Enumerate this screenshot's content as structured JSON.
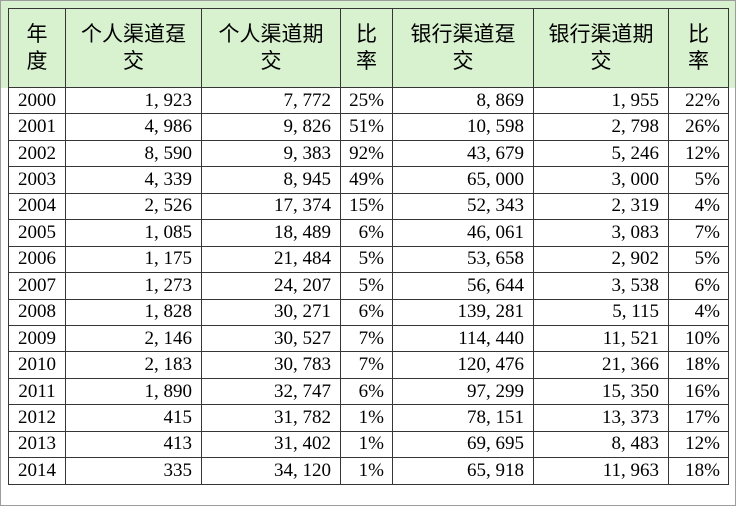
{
  "chart_data": {
    "type": "table",
    "title": "",
    "columns": [
      "年度",
      "个人渠道趸交",
      "个人渠道期交",
      "比率",
      "银行渠道趸交",
      "银行渠道期交",
      "比率"
    ],
    "rows": [
      [
        "2000",
        "1, 923",
        "7, 772",
        "25%",
        "8, 869",
        "1, 955",
        "22%"
      ],
      [
        "2001",
        "4, 986",
        "9, 826",
        "51%",
        "10, 598",
        "2, 798",
        "26%"
      ],
      [
        "2002",
        "8, 590",
        "9, 383",
        "92%",
        "43, 679",
        "5, 246",
        "12%"
      ],
      [
        "2003",
        "4, 339",
        "8, 945",
        "49%",
        "65, 000",
        "3, 000",
        "5%"
      ],
      [
        "2004",
        "2, 526",
        "17, 374",
        "15%",
        "52, 343",
        "2, 319",
        "4%"
      ],
      [
        "2005",
        "1, 085",
        "18, 489",
        "6%",
        "46, 061",
        "3, 083",
        "7%"
      ],
      [
        "2006",
        "1, 175",
        "21, 484",
        "5%",
        "53, 658",
        "2, 902",
        "5%"
      ],
      [
        "2007",
        "1, 273",
        "24, 207",
        "5%",
        "56, 644",
        "3, 538",
        "6%"
      ],
      [
        "2008",
        "1, 828",
        "30, 271",
        "6%",
        "139, 281",
        "5, 115",
        "4%"
      ],
      [
        "2009",
        "2, 146",
        "30, 527",
        "7%",
        "114, 440",
        "11, 521",
        "10%"
      ],
      [
        "2010",
        "2, 183",
        "30, 783",
        "7%",
        "120, 476",
        "21, 366",
        "18%"
      ],
      [
        "2011",
        "1, 890",
        "32, 747",
        "6%",
        "97, 299",
        "15, 350",
        "16%"
      ],
      [
        "2012",
        "415",
        "31, 782",
        "1%",
        "78, 151",
        "13, 373",
        "17%"
      ],
      [
        "2013",
        "413",
        "31, 402",
        "1%",
        "69, 695",
        "8, 483",
        "12%"
      ],
      [
        "2014",
        "335",
        "34, 120",
        "1%",
        "65, 918",
        "11, 963",
        "18%"
      ]
    ],
    "layout": {
      "header_rows": 1,
      "year_column_index": 0,
      "percent_column_indexes": [
        3,
        6
      ]
    }
  },
  "colors": {
    "header_bg": "#d8f2cf",
    "grid_border": "#363636",
    "outer_border": "#9c9c9c",
    "row_bg": "#ffffff",
    "text": "#000000"
  }
}
